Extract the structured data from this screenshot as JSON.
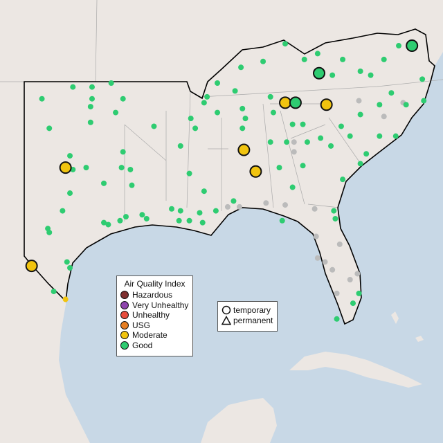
{
  "legend": {
    "title": "Air Quality Index",
    "categories": [
      {
        "label": "Hazardous",
        "color": "#7e2f2f"
      },
      {
        "label": "Very Unhealthy",
        "color": "#8e44ad"
      },
      {
        "label": "Unhealthy",
        "color": "#e74c3c"
      },
      {
        "label": "USG",
        "color": "#e67e22"
      },
      {
        "label": "Moderate",
        "color": "#f1c40f"
      },
      {
        "label": "Good",
        "color": "#2ecc71"
      }
    ],
    "no_data_color": "#bbbbbb"
  },
  "shape_legend": {
    "temporary": "temporary",
    "permanent": "permanent"
  },
  "colors": {
    "ocean": "#c8d8e6",
    "land": "#ece7e3",
    "region_outline": "#000000"
  },
  "highlighted_sites": [
    {
      "lon": -100.2,
      "lat": 32.7,
      "aqi": "Moderate"
    },
    {
      "lon": -102.5,
      "lat": 27.7,
      "aqi": "Moderate"
    },
    {
      "lon": -88.1,
      "lat": 33.6,
      "aqi": "Moderate"
    },
    {
      "lon": -87.3,
      "lat": 32.5,
      "aqi": "Moderate"
    },
    {
      "lon": -85.3,
      "lat": 36.0,
      "aqi": "Moderate"
    },
    {
      "lon": -84.6,
      "lat": 36.0,
      "aqi": "Good"
    },
    {
      "lon": -82.5,
      "lat": 35.9,
      "aqi": "Moderate"
    },
    {
      "lon": -83.0,
      "lat": 37.5,
      "aqi": "Good"
    },
    {
      "lon": -76.7,
      "lat": 38.9,
      "aqi": "Good"
    }
  ],
  "sites_good": [
    [
      -101.8,
      36.2
    ],
    [
      -99.7,
      36.8
    ],
    [
      -98.4,
      36.8
    ],
    [
      -97.1,
      37.0
    ],
    [
      -96.3,
      36.2
    ],
    [
      -98.4,
      36.2
    ],
    [
      -98.5,
      35.8
    ],
    [
      -96.8,
      35.5
    ],
    [
      -101.3,
      34.7
    ],
    [
      -98.5,
      35.0
    ],
    [
      -94.2,
      34.8
    ],
    [
      -96.3,
      33.5
    ],
    [
      -99.9,
      33.3
    ],
    [
      -100.0,
      32.8
    ],
    [
      -99.7,
      32.6
    ],
    [
      -98.8,
      32.7
    ],
    [
      -96.4,
      32.7
    ],
    [
      -95.8,
      32.6
    ],
    [
      -97.6,
      31.9
    ],
    [
      -95.7,
      31.8
    ],
    [
      -99.9,
      31.4
    ],
    [
      -100.4,
      30.5
    ],
    [
      -101.4,
      29.6
    ],
    [
      -101.3,
      29.4
    ],
    [
      -97.6,
      29.9
    ],
    [
      -97.3,
      29.8
    ],
    [
      -96.5,
      30.0
    ],
    [
      -96.1,
      30.2
    ],
    [
      -95.0,
      30.3
    ],
    [
      -94.7,
      30.1
    ],
    [
      -100.1,
      27.9
    ],
    [
      -99.9,
      27.6
    ],
    [
      -101.0,
      26.4
    ],
    [
      -93.0,
      30.6
    ],
    [
      -92.4,
      30.5
    ],
    [
      -92.5,
      30.0
    ],
    [
      -91.8,
      30.0
    ],
    [
      -90.9,
      29.9
    ],
    [
      -91.1,
      30.4
    ],
    [
      -90.8,
      31.5
    ],
    [
      -91.8,
      32.4
    ],
    [
      -92.4,
      33.8
    ],
    [
      -91.7,
      35.2
    ],
    [
      -91.4,
      34.7
    ],
    [
      -90.8,
      36.0
    ],
    [
      -89.9,
      37.0
    ],
    [
      -90.0,
      30.5
    ],
    [
      -88.8,
      31.0
    ],
    [
      -88.2,
      34.7
    ],
    [
      -88.0,
      35.2
    ],
    [
      -88.7,
      36.6
    ],
    [
      -88.2,
      35.7
    ],
    [
      -86.3,
      36.3
    ],
    [
      -86.1,
      35.5
    ],
    [
      -86.3,
      34.0
    ],
    [
      -85.7,
      32.7
    ],
    [
      -85.2,
      34.0
    ],
    [
      -84.8,
      34.9
    ],
    [
      -84.1,
      34.9
    ],
    [
      -83.8,
      34.0
    ],
    [
      -84.1,
      32.8
    ],
    [
      -84.8,
      31.7
    ],
    [
      -82.9,
      34.2
    ],
    [
      -82.2,
      33.8
    ],
    [
      -81.5,
      34.8
    ],
    [
      -80.9,
      34.3
    ],
    [
      -80.2,
      32.9
    ],
    [
      -79.8,
      33.4
    ],
    [
      -78.9,
      34.3
    ],
    [
      -77.8,
      34.3
    ],
    [
      -78.9,
      35.9
    ],
    [
      -80.2,
      35.4
    ],
    [
      -78.1,
      36.5
    ],
    [
      -76.0,
      37.2
    ],
    [
      -75.9,
      36.1
    ],
    [
      -77.1,
      35.9
    ],
    [
      -79.5,
      37.4
    ],
    [
      -80.2,
      37.6
    ],
    [
      -82.1,
      37.4
    ],
    [
      -84.0,
      38.2
    ],
    [
      -85.3,
      39.0
    ],
    [
      -86.8,
      38.1
    ],
    [
      -88.3,
      37.8
    ],
    [
      -83.1,
      38.5
    ],
    [
      -81.4,
      38.2
    ],
    [
      -78.6,
      38.2
    ],
    [
      -77.6,
      38.9
    ],
    [
      -81.4,
      32.1
    ],
    [
      -82.0,
      30.5
    ],
    [
      -81.9,
      30.1
    ],
    [
      -80.3,
      26.3
    ],
    [
      -80.7,
      25.8
    ],
    [
      -81.8,
      25.0
    ],
    [
      -85.5,
      30.0
    ],
    [
      -90.6,
      36.3
    ],
    [
      -89.9,
      35.5
    ]
  ],
  "sites_moderate_small": [
    [
      -100.2,
      26.0
    ]
  ],
  "sites_no_data": [
    [
      -88.4,
      30.7
    ],
    [
      -86.6,
      30.9
    ],
    [
      -85.3,
      30.8
    ],
    [
      -83.3,
      30.6
    ],
    [
      -83.1,
      28.1
    ],
    [
      -82.6,
      27.9
    ],
    [
      -81.6,
      28.8
    ],
    [
      -82.1,
      27.5
    ],
    [
      -80.9,
      27.0
    ],
    [
      -80.4,
      27.3
    ],
    [
      -83.2,
      29.2
    ],
    [
      -80.3,
      36.1
    ],
    [
      -77.3,
      36.0
    ],
    [
      -78.6,
      35.3
    ],
    [
      -84.7,
      34.0
    ],
    [
      -84.7,
      33.5
    ],
    [
      -89.2,
      30.7
    ],
    [
      -81.8,
      26.3
    ]
  ]
}
